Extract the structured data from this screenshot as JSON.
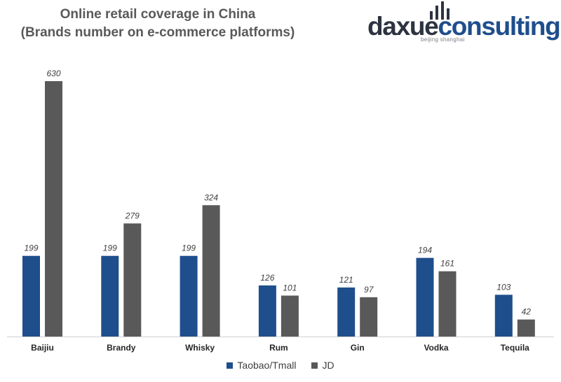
{
  "title_line1": "Online retail coverage in China",
  "title_line2": "(Brands number on e-commerce platforms)",
  "logo": {
    "main": "daxue",
    "accent": "consulting",
    "sub": "beijing shanghai"
  },
  "chart_data": {
    "type": "bar",
    "categories": [
      "Baijiu",
      "Brandy",
      "Whisky",
      "Rum",
      "Gin",
      "Vodka",
      "Tequila"
    ],
    "series": [
      {
        "name": "Taobao/Tmall",
        "color": "#1f4e8c",
        "values": [
          199,
          199,
          199,
          126,
          121,
          194,
          103
        ]
      },
      {
        "name": "JD",
        "color": "#595959",
        "values": [
          630,
          279,
          324,
          101,
          97,
          161,
          42
        ]
      }
    ],
    "ylim": [
      0,
      630
    ],
    "grid": false,
    "legend": "bottom"
  }
}
